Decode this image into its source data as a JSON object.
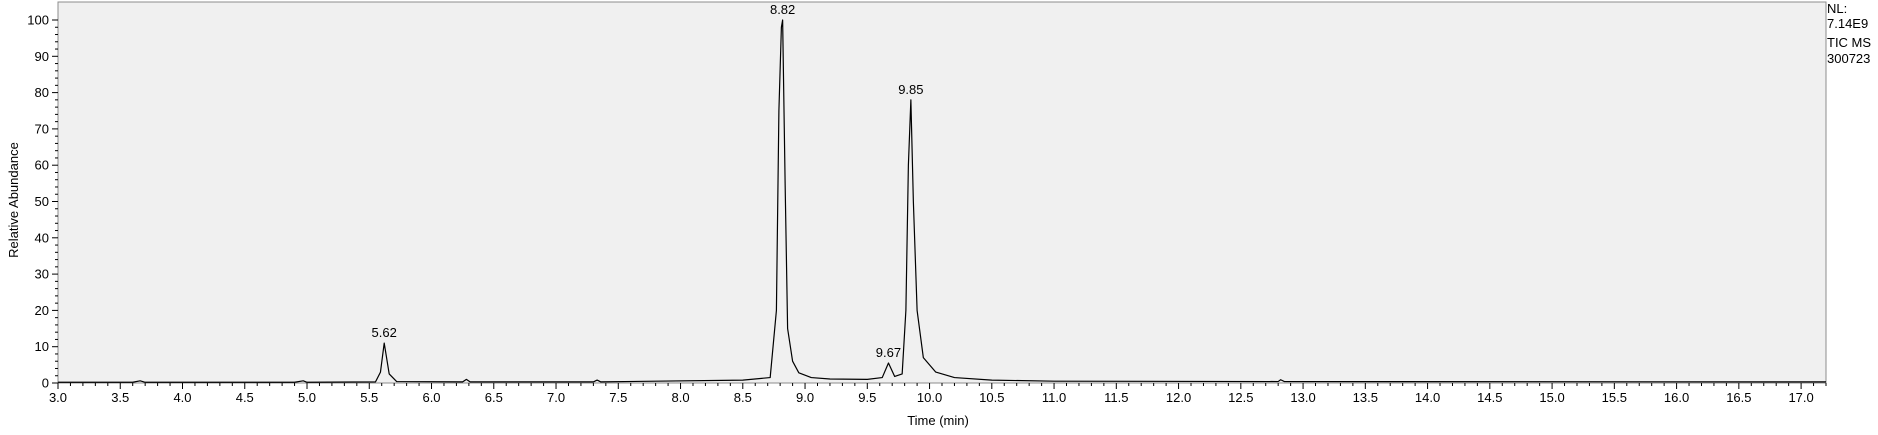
{
  "chart_data": {
    "type": "line",
    "xlabel": "Time (min)",
    "ylabel": "Relative Abundance",
    "xlim": [
      3.0,
      17.2
    ],
    "ylim": [
      0,
      100
    ],
    "x_ticks": [
      "3.0",
      "3.5",
      "4.0",
      "4.5",
      "5.0",
      "5.5",
      "6.0",
      "6.5",
      "7.0",
      "7.5",
      "8.0",
      "8.5",
      "9.0",
      "9.5",
      "10.0",
      "10.5",
      "11.0",
      "11.5",
      "12.0",
      "12.5",
      "13.0",
      "13.5",
      "14.0",
      "14.5",
      "15.0",
      "15.5",
      "16.0",
      "16.5",
      "17.0"
    ],
    "y_ticks": [
      "0",
      "10",
      "20",
      "30",
      "40",
      "50",
      "60",
      "70",
      "80",
      "90",
      "100"
    ],
    "grid": false,
    "peak_labels": [
      {
        "x": 5.62,
        "y": 11,
        "label": "5.62"
      },
      {
        "x": 8.82,
        "y": 100,
        "label": "8.82"
      },
      {
        "x": 9.67,
        "y": 5.5,
        "label": "9.67"
      },
      {
        "x": 9.85,
        "y": 78,
        "label": "9.85"
      }
    ],
    "series": [
      {
        "color": "#000000",
        "x": [
          3.0,
          3.6,
          3.66,
          3.7,
          4.9,
          4.97,
          5.0,
          5.55,
          5.59,
          5.62,
          5.66,
          5.72,
          6.25,
          6.28,
          6.31,
          7.3,
          7.33,
          7.36,
          7.8,
          8.5,
          8.72,
          8.77,
          8.79,
          8.81,
          8.82,
          8.84,
          8.86,
          8.9,
          8.95,
          9.05,
          9.2,
          9.5,
          9.62,
          9.67,
          9.72,
          9.78,
          9.81,
          9.83,
          9.85,
          9.87,
          9.9,
          9.95,
          10.05,
          10.2,
          10.5,
          11.0,
          12.8,
          12.82,
          12.85,
          17.2
        ],
        "y": [
          0.2,
          0.2,
          0.6,
          0.2,
          0.2,
          0.6,
          0.2,
          0.3,
          3.0,
          11.0,
          2.5,
          0.4,
          0.3,
          1.0,
          0.3,
          0.3,
          0.8,
          0.3,
          0.5,
          0.8,
          1.5,
          20,
          75,
          98,
          100,
          55,
          15,
          6,
          2.8,
          1.5,
          1.1,
          1.0,
          1.5,
          5.5,
          1.8,
          2.5,
          20,
          60,
          78,
          50,
          20,
          7,
          3,
          1.5,
          0.8,
          0.5,
          0.4,
          0.9,
          0.4,
          0.3
        ]
      }
    ]
  },
  "annotations": {
    "nl_label": "NL:",
    "nl_value": "7.14E9",
    "scan_type": "TIC  MS",
    "file_id": "300723"
  }
}
